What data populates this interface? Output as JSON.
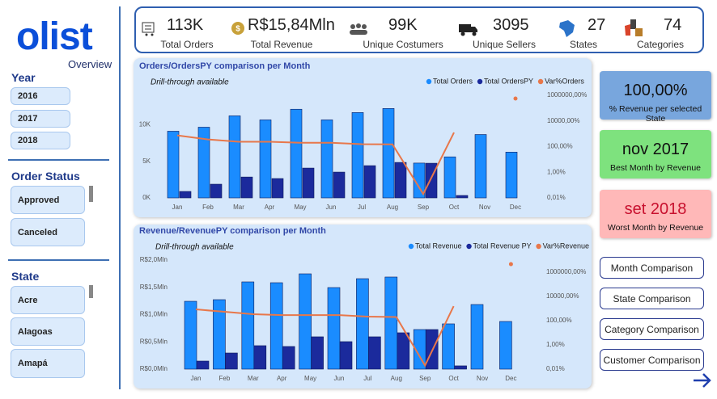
{
  "sidebar": {
    "logo": "olist",
    "subtitle": "Overview",
    "filters": [
      {
        "title": "Year",
        "options": [
          "2016",
          "2017",
          "2018"
        ]
      },
      {
        "title": "Order Status",
        "options": [
          "Approved",
          "Canceled"
        ]
      },
      {
        "title": "State",
        "options": [
          "Acre",
          "Alagoas",
          "Amapá"
        ]
      }
    ]
  },
  "kpis": [
    {
      "value": "113K",
      "label": "Total Orders"
    },
    {
      "value": "R$15,84Mln",
      "label": "Total Revenue"
    },
    {
      "value": "99K",
      "label": "Unique Costumers"
    },
    {
      "value": "3095",
      "label": "Unique Sellers"
    },
    {
      "value": "27",
      "label": "States"
    },
    {
      "value": "74",
      "label": "Categories"
    }
  ],
  "cards": [
    {
      "value": "100,00%",
      "label": "% Revenue per selected State"
    },
    {
      "value": "nov 2017",
      "label": "Best Month by Revenue"
    },
    {
      "value": "set 2018",
      "label": "Worst Month by Revenue"
    }
  ],
  "buttons": [
    "Month Comparison",
    "State Comparison",
    "Category Comparison",
    "Customer Comparison"
  ],
  "chart_data": [
    {
      "type": "bar",
      "title": "Orders/OrdersPY comparison per Month",
      "subtitle": "Drill-through available",
      "categories": [
        "Jan",
        "Feb",
        "Mar",
        "Apr",
        "May",
        "Jun",
        "Jul",
        "Aug",
        "Sep",
        "Oct",
        "Nov",
        "Dec"
      ],
      "series": [
        {
          "name": "Total Orders",
          "color": "#1a8cff",
          "values": [
            9100,
            9650,
            11200,
            10650,
            12100,
            10650,
            11650,
            12200,
            4750,
            5600,
            8650,
            6250
          ]
        },
        {
          "name": "Total OrdersPY",
          "color": "#1b2a9c",
          "values": [
            880,
            1870,
            2850,
            2640,
            4070,
            3520,
            4400,
            4840,
            4730,
            330,
            null,
            null
          ]
        },
        {
          "name": "Var%Orders",
          "color": "#e8774a",
          "axis": "y2",
          "kind": "line",
          "values": [
            750,
            363,
            237,
            237,
            200,
            200,
            155,
            150,
            0.02,
            1250,
            null,
            560000
          ]
        }
      ],
      "ylim": [
        0,
        14000
      ],
      "yticks": [
        {
          "value": 0,
          "label": "0K"
        },
        {
          "value": 5000,
          "label": "5K"
        },
        {
          "value": 10000,
          "label": "10K"
        }
      ],
      "y2lim": [
        0.01,
        1000000
      ],
      "y2scale": "log",
      "y2ticks": [
        {
          "value": 0.01,
          "label": "0,01%"
        },
        {
          "value": 1,
          "label": "1,00%"
        },
        {
          "value": 100,
          "label": "100,00%"
        },
        {
          "value": 10000,
          "label": "10000,00%"
        },
        {
          "value": 1000000,
          "label": "1000000,00%"
        }
      ],
      "legend": "top-right",
      "grid": false
    },
    {
      "type": "bar",
      "title": "Revenue/RevenuePY comparison per Month",
      "subtitle": "Drill-through available",
      "categories": [
        "Jan",
        "Feb",
        "Mar",
        "Apr",
        "May",
        "Jun",
        "Jul",
        "Aug",
        "Sep",
        "Oct",
        "Nov",
        "Dec"
      ],
      "series": [
        {
          "name": "Total Revenue",
          "color": "#1a8cff",
          "values": [
            1244000,
            1274000,
            1600000,
            1585000,
            1748000,
            1496000,
            1659000,
            1689000,
            726000,
            830000,
            1185000,
            874000
          ]
        },
        {
          "name": "Total Revenue PY",
          "color": "#1b2a9c",
          "values": [
            148000,
            296000,
            430000,
            415000,
            593000,
            504000,
            593000,
            667000,
            726000,
            60000,
            null,
            null
          ]
        },
        {
          "name": "Var%Revenue",
          "color": "#e8774a",
          "axis": "y2",
          "kind": "line",
          "values": [
            850,
            540,
            340,
            290,
            290,
            290,
            215,
            200,
            0.02,
            1580,
            null,
            4600000
          ]
        }
      ],
      "ylim": [
        0,
        2000000
      ],
      "yticks": [
        {
          "value": 0,
          "label": "R$0,0Mln"
        },
        {
          "value": 500000,
          "label": "R$0,5Mln"
        },
        {
          "value": 1000000,
          "label": "R$1,0Mln"
        },
        {
          "value": 1500000,
          "label": "R$1,5Mln"
        },
        {
          "value": 2000000,
          "label": "R$2,0Mln"
        }
      ],
      "y2lim": [
        0.01,
        10000000
      ],
      "y2scale": "log",
      "y2ticks": [
        {
          "value": 0.01,
          "label": "0,01%"
        },
        {
          "value": 1,
          "label": "1,00%"
        },
        {
          "value": 100,
          "label": "100,00%"
        },
        {
          "value": 10000,
          "label": "10000,00%"
        },
        {
          "value": 1000000,
          "label": "1000000,00%"
        }
      ],
      "legend": "top-right",
      "grid": false
    }
  ]
}
